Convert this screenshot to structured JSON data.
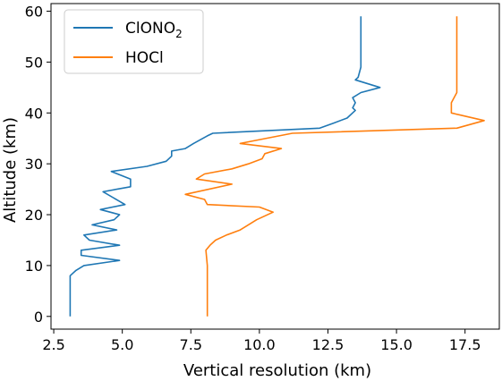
{
  "chart_data": {
    "type": "line",
    "title": "",
    "xlabel": "Vertical resolution (km)",
    "ylabel": "Altitude (km)",
    "xlim": [
      2.4,
      18.75
    ],
    "ylim": [
      -2.5,
      61.5
    ],
    "xticks": [
      2.5,
      5.0,
      7.5,
      10.0,
      12.5,
      15.0,
      17.5
    ],
    "xtick_labels": [
      "2.5",
      "5.0",
      "7.5",
      "10.0",
      "12.5",
      "15.0",
      "17.5"
    ],
    "yticks": [
      0,
      10,
      20,
      30,
      40,
      50,
      60
    ],
    "ytick_labels": [
      "0",
      "10",
      "20",
      "30",
      "40",
      "50",
      "60"
    ],
    "grid": false,
    "legend": "top-left",
    "series": [
      {
        "name": "ClONO",
        "name_subscript": "2",
        "color": "#1f77b4",
        "points": [
          [
            3.1,
            0
          ],
          [
            3.1,
            8
          ],
          [
            3.2,
            8.5
          ],
          [
            3.3,
            9
          ],
          [
            3.6,
            10
          ],
          [
            4.9,
            11
          ],
          [
            3.5,
            12
          ],
          [
            3.5,
            13
          ],
          [
            4.9,
            14
          ],
          [
            3.8,
            15
          ],
          [
            3.6,
            16
          ],
          [
            4.8,
            17
          ],
          [
            3.9,
            18
          ],
          [
            4.7,
            19
          ],
          [
            4.9,
            20
          ],
          [
            4.2,
            21
          ],
          [
            5.1,
            22
          ],
          [
            4.3,
            24.5
          ],
          [
            5.3,
            25.5
          ],
          [
            5.3,
            27
          ],
          [
            4.6,
            28.5
          ],
          [
            5.9,
            29.5
          ],
          [
            6.6,
            30.5
          ],
          [
            6.8,
            31.5
          ],
          [
            6.8,
            32.5
          ],
          [
            7.3,
            33
          ],
          [
            7.6,
            34
          ],
          [
            8.1,
            35.5
          ],
          [
            8.3,
            36
          ],
          [
            12.2,
            37
          ],
          [
            12.7,
            38
          ],
          [
            13.2,
            39
          ],
          [
            13.5,
            40.5
          ],
          [
            13.4,
            41
          ],
          [
            13.5,
            42
          ],
          [
            13.4,
            43
          ],
          [
            13.7,
            44
          ],
          [
            14.4,
            45
          ],
          [
            13.5,
            46.5
          ],
          [
            13.6,
            47
          ],
          [
            13.7,
            49
          ],
          [
            13.7,
            52
          ],
          [
            13.7,
            59
          ]
        ]
      },
      {
        "name": "HOCl",
        "name_subscript": "",
        "color": "#ff7f0e",
        "points": [
          [
            8.1,
            0
          ],
          [
            8.1,
            10
          ],
          [
            8.05,
            13
          ],
          [
            8.2,
            14
          ],
          [
            8.4,
            15
          ],
          [
            8.8,
            16
          ],
          [
            9.3,
            17
          ],
          [
            9.9,
            19
          ],
          [
            10.5,
            20.5
          ],
          [
            10.0,
            21.5
          ],
          [
            8.1,
            22
          ],
          [
            8.0,
            23
          ],
          [
            7.3,
            24
          ],
          [
            9.0,
            26
          ],
          [
            7.7,
            27
          ],
          [
            8.0,
            28
          ],
          [
            9.0,
            29
          ],
          [
            9.6,
            30
          ],
          [
            10.1,
            31
          ],
          [
            10.2,
            32
          ],
          [
            10.8,
            33
          ],
          [
            9.3,
            34
          ],
          [
            11.2,
            36
          ],
          [
            17.2,
            37
          ],
          [
            18.2,
            38.5
          ],
          [
            17.0,
            40
          ],
          [
            17.0,
            42
          ],
          [
            17.2,
            44
          ],
          [
            17.2,
            59
          ]
        ]
      }
    ]
  }
}
